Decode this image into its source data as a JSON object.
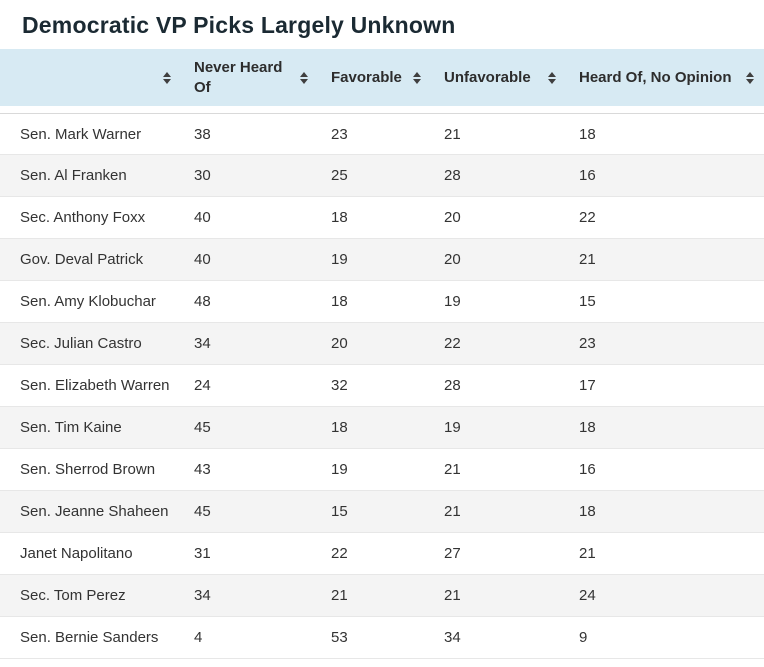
{
  "title": "Democratic VP Picks Largely Unknown",
  "table": {
    "columns": [
      {
        "label": ""
      },
      {
        "label": "Never Heard Of"
      },
      {
        "label": "Favorable"
      },
      {
        "label": "Unfavorable"
      },
      {
        "label": "Heard Of, No Opinion"
      }
    ],
    "sort_icon": "sort-arrows"
  },
  "chart_data": {
    "type": "table",
    "title": "Democratic VP Picks Largely Unknown",
    "columns": [
      "Never Heard Of",
      "Favorable",
      "Unfavorable",
      "Heard Of, No Opinion"
    ],
    "rows": [
      {
        "name": "Sen. Mark Warner",
        "values": [
          38,
          23,
          21,
          18
        ]
      },
      {
        "name": "Sen. Al Franken",
        "values": [
          30,
          25,
          28,
          16
        ]
      },
      {
        "name": "Sec. Anthony Foxx",
        "values": [
          40,
          18,
          20,
          22
        ]
      },
      {
        "name": "Gov. Deval Patrick",
        "values": [
          40,
          19,
          20,
          21
        ]
      },
      {
        "name": "Sen. Amy Klobuchar",
        "values": [
          48,
          18,
          19,
          15
        ]
      },
      {
        "name": "Sec. Julian Castro",
        "values": [
          34,
          20,
          22,
          23
        ]
      },
      {
        "name": "Sen. Elizabeth Warren",
        "values": [
          24,
          32,
          28,
          17
        ]
      },
      {
        "name": "Sen. Tim Kaine",
        "values": [
          45,
          18,
          19,
          18
        ]
      },
      {
        "name": "Sen. Sherrod Brown",
        "values": [
          43,
          19,
          21,
          16
        ]
      },
      {
        "name": "Sen. Jeanne Shaheen",
        "values": [
          45,
          15,
          21,
          18
        ]
      },
      {
        "name": "Janet Napolitano",
        "values": [
          31,
          22,
          27,
          21
        ]
      },
      {
        "name": "Sec. Tom Perez",
        "values": [
          34,
          21,
          21,
          24
        ]
      },
      {
        "name": "Sen. Bernie Sanders",
        "values": [
          4,
          53,
          34,
          9
        ]
      }
    ]
  },
  "colors": {
    "header_bg": "#d7eaf3",
    "row_alt_bg": "#f4f4f4",
    "title_color": "#1b2a33",
    "header_text": "#2d2d2d",
    "body_text": "#333333",
    "sort_icon": "#3f3f3f"
  }
}
